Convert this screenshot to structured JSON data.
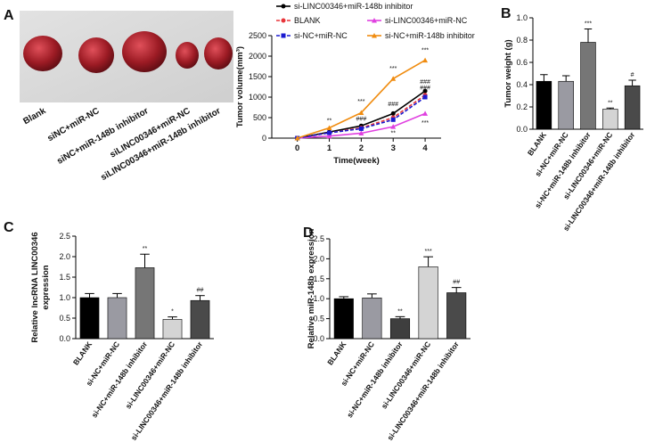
{
  "panels": [
    "A",
    "B",
    "C",
    "D"
  ],
  "photo": {
    "labels": [
      "Blank",
      "siNC+miR-NC",
      "siNC+miR-148b inhibitor",
      "siLINC00346+miR-NC",
      "siLINC00346+miR-148b inhibitor"
    ]
  },
  "chart_data": [
    {
      "type": "line",
      "xlabel": "Time(week)",
      "ylabel": "Tumor volume(mm³)",
      "x": [
        0,
        1,
        2,
        3,
        4
      ],
      "xlim": [
        -0.8,
        4.5
      ],
      "xticks": [
        0,
        1,
        2,
        3,
        4
      ],
      "ylim": [
        0,
        2500
      ],
      "yticks": [
        0,
        500,
        1000,
        1500,
        2000,
        2500
      ],
      "series": [
        {
          "name": "si-LINC00346+miR-148b inhibitor",
          "color": "#000000",
          "style": "solid",
          "marker": "circle",
          "values": [
            0,
            150,
            300,
            600,
            1150
          ]
        },
        {
          "name": "BLANK",
          "color": "#e8353a",
          "style": "dashed",
          "marker": "circle",
          "values": [
            0,
            130,
            250,
            500,
            1050
          ]
        },
        {
          "name": "si-LINC00346+miR-NC",
          "color": "#e040e0",
          "style": "solid",
          "marker": "triangle",
          "values": [
            0,
            50,
            120,
            280,
            600
          ]
        },
        {
          "name": "si-NC+miR-NC",
          "color": "#1a1ad0",
          "style": "dashed",
          "marker": "square",
          "values": [
            0,
            130,
            230,
            450,
            1000
          ]
        },
        {
          "name": "si-NC+miR-148b inhibitor",
          "color": "#f08c10",
          "style": "solid",
          "marker": "triangle",
          "values": [
            0,
            250,
            620,
            1450,
            1900
          ]
        }
      ],
      "annotations": [
        {
          "text": "**",
          "x": 1,
          "y": 380
        },
        {
          "text": "***",
          "x": 2,
          "y": 850
        },
        {
          "text": "###",
          "x": 2,
          "y": 420
        },
        {
          "text": "***",
          "x": 3,
          "y": 1650
        },
        {
          "text": "###",
          "x": 3,
          "y": 780
        },
        {
          "text": "**",
          "x": 3,
          "y": 80
        },
        {
          "text": "***",
          "x": 4,
          "y": 2100
        },
        {
          "text": "###",
          "x": 4,
          "y": 1330
        },
        {
          "text": "###",
          "x": 4,
          "y": 1180
        },
        {
          "text": "***",
          "x": 4,
          "y": 330
        }
      ]
    },
    {
      "type": "bar",
      "ylabel": [
        "Tumor weight (g)"
      ],
      "categories": [
        "BLANK",
        "si-NC+miR-NC",
        "si-NC+miR-148b inhibitor",
        "si-LINC00346+miR-NC",
        "si-LINC00346+miR-148b inhibitor"
      ],
      "values": [
        0.43,
        0.43,
        0.78,
        0.18,
        0.39
      ],
      "errors": [
        0.06,
        0.05,
        0.12,
        0.01,
        0.05
      ],
      "colors": [
        "#000000",
        "#9a9aa2",
        "#767676",
        "#d4d4d4",
        "#4a4a4a"
      ],
      "ylim": [
        0,
        1.0
      ],
      "yticks": [
        {
          "value": 0,
          "label": "0.0"
        },
        0.2,
        0.4,
        0.6,
        0.8,
        {
          "value": 1.0,
          "label": "1.0"
        }
      ],
      "annotations": [
        {
          "category": 2,
          "text": "***"
        },
        {
          "category": 3,
          "text": "**"
        },
        {
          "category": 4,
          "text": "#"
        }
      ]
    },
    {
      "type": "bar",
      "ylabel": [
        "Relative lncRNA LINC00346",
        "expression"
      ],
      "categories": [
        "BLANK",
        "si-NC+miR-NC",
        "si-NC+miR-148b inhibitor",
        "si-LINC00346+miR-NC",
        "si-LINC00346+miR-148b inhibitor"
      ],
      "values": [
        1.0,
        1.0,
        1.73,
        0.47,
        0.93
      ],
      "errors": [
        0.1,
        0.1,
        0.33,
        0.06,
        0.12
      ],
      "colors": [
        "#000000",
        "#9a9aa2",
        "#767676",
        "#d4d4d4",
        "#4a4a4a"
      ],
      "ylim": [
        0,
        2.5
      ],
      "yticks": [
        {
          "value": 0,
          "label": "0.0"
        },
        0.5,
        {
          "value": 1.0,
          "label": "1.0"
        },
        1.5,
        {
          "value": 2.0,
          "label": "2.0"
        },
        2.5
      ],
      "annotations": [
        {
          "category": 2,
          "text": "**"
        },
        {
          "category": 3,
          "text": "*"
        },
        {
          "category": 4,
          "text": "##"
        }
      ]
    },
    {
      "type": "bar",
      "ylabel": [
        "Relative miR-148b expression"
      ],
      "categories": [
        "BLANK",
        "si-NC+miR-NC",
        "si-NC+miR-148b inhibitor",
        "si-LINC00346+miR-NC",
        "si-LINC00346+miR-148b inhibitor"
      ],
      "values": [
        1.0,
        1.02,
        0.5,
        1.8,
        1.15
      ],
      "errors": [
        0.05,
        0.1,
        0.05,
        0.25,
        0.13
      ],
      "colors": [
        "#000000",
        "#9a9aa2",
        "#3e3e3e",
        "#d4d4d4",
        "#4a4a4a"
      ],
      "ylim": [
        0,
        2.5
      ],
      "yticks": [
        {
          "value": 0,
          "label": "0.0"
        },
        0.5,
        {
          "value": 1.0,
          "label": "1.0"
        },
        1.5,
        {
          "value": 2.0,
          "label": "2.0"
        },
        2.5
      ],
      "annotations": [
        {
          "category": 2,
          "text": "**"
        },
        {
          "category": 3,
          "text": "***"
        },
        {
          "category": 4,
          "text": "##"
        }
      ]
    }
  ]
}
